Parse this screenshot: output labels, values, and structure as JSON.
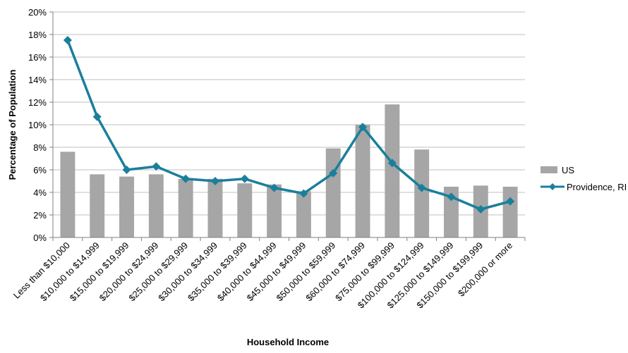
{
  "chart_data": {
    "type": "bar",
    "categories": [
      "Less than $10,000",
      "$10,000 to $14,999",
      "$15,000 to $19,999",
      "$20,000 to $24,999",
      "$25,000 to $29,999",
      "$30,000 to $34,999",
      "$35,000 to $39,999",
      "$40,000 to $44,999",
      "$45,000 to $49,999",
      "$50,000 to $59,999",
      "$60,000 to $74,999",
      "$75,000 to $99,999",
      "$100,000 to $124,999",
      "$125,000 to $149,999",
      "$150,000 to $199,999",
      "$200,000 or more"
    ],
    "series": [
      {
        "name": "US",
        "type": "bar",
        "color": "#a6a6a6",
        "values": [
          7.6,
          5.6,
          5.4,
          5.6,
          5.2,
          5.2,
          4.8,
          4.7,
          4.1,
          7.9,
          10.0,
          11.8,
          7.8,
          4.5,
          4.6,
          4.5
        ]
      },
      {
        "name": "Providence, RI",
        "type": "line",
        "color": "#1a7f9c",
        "marker": "diamond",
        "values": [
          17.5,
          10.7,
          6.0,
          6.3,
          5.2,
          5.0,
          5.2,
          4.4,
          3.9,
          5.7,
          9.8,
          6.6,
          4.4,
          3.6,
          2.5,
          3.2
        ]
      }
    ],
    "title": "",
    "xlabel": "Household Income",
    "ylabel": "Percentage of Population",
    "ylim": [
      0,
      20
    ],
    "yticks": [
      "0%",
      "2%",
      "4%",
      "6%",
      "8%",
      "10%",
      "12%",
      "14%",
      "16%",
      "18%",
      "20%"
    ],
    "grid": true,
    "legend_position": "right"
  }
}
